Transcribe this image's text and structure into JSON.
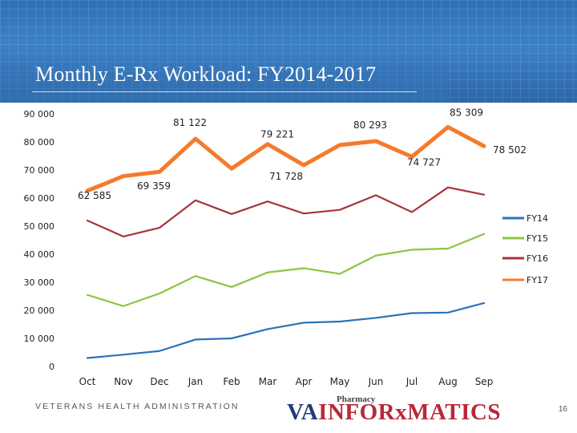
{
  "title": "Monthly E-Rx Workload: FY2014-2017",
  "footer": "VETERANS HEALTH ADMINISTRATION",
  "logo": {
    "small": "Pharmacy",
    "va": "VA",
    "rest": "INFORxMATICS"
  },
  "page_number": "16",
  "colors": {
    "FY14": "#2a73b8",
    "FY15": "#8cc63f",
    "FY16": "#a8323a",
    "FY17": "#f47b2b"
  },
  "chart_data": {
    "type": "line",
    "title": "Monthly E-Rx Workload: FY2014-2017",
    "categories": [
      "Oct",
      "Nov",
      "Dec",
      "Jan",
      "Feb",
      "Mar",
      "Apr",
      "May",
      "Jun",
      "Jul",
      "Aug",
      "Sep"
    ],
    "ylim": [
      0,
      90000
    ],
    "yticks": [
      "0",
      "10 000",
      "20 000",
      "30 000",
      "40 000",
      "50 000",
      "60 000",
      "70 000",
      "80 000",
      "90 000"
    ],
    "grid": false,
    "legend": "right",
    "series": [
      {
        "name": "FY14",
        "values": [
          3000,
          4200,
          5500,
          9600,
          10000,
          13300,
          15600,
          16000,
          17300,
          19000,
          19200,
          22600
        ]
      },
      {
        "name": "FY15",
        "values": [
          25500,
          21500,
          26000,
          32200,
          28300,
          33500,
          35000,
          33000,
          39500,
          41600,
          42000,
          47200
        ]
      },
      {
        "name": "FY16",
        "values": [
          52000,
          46300,
          49400,
          59200,
          54300,
          58800,
          54500,
          55800,
          61000,
          55000,
          63800,
          61200
        ]
      },
      {
        "name": "FY17",
        "values": [
          62585,
          67800,
          69359,
          81122,
          70500,
          79221,
          71728,
          78900,
          80293,
          74727,
          85309,
          78502
        ]
      }
    ],
    "data_labels": [
      {
        "series": "FY17",
        "month": "Oct",
        "text": "62 585"
      },
      {
        "series": "FY17",
        "month": "Dec",
        "text": "69 359"
      },
      {
        "series": "FY17",
        "month": "Jan",
        "text": "81 122"
      },
      {
        "series": "FY17",
        "month": "Mar",
        "text": "79 221"
      },
      {
        "series": "FY17",
        "month": "Apr",
        "text": "71 728"
      },
      {
        "series": "FY17",
        "month": "Jun",
        "text": "80 293"
      },
      {
        "series": "FY17",
        "month": "Jul",
        "text": "74 727"
      },
      {
        "series": "FY17",
        "month": "Aug",
        "text": "85 309"
      },
      {
        "series": "FY17",
        "month": "Sep",
        "text": "78 502"
      }
    ]
  }
}
